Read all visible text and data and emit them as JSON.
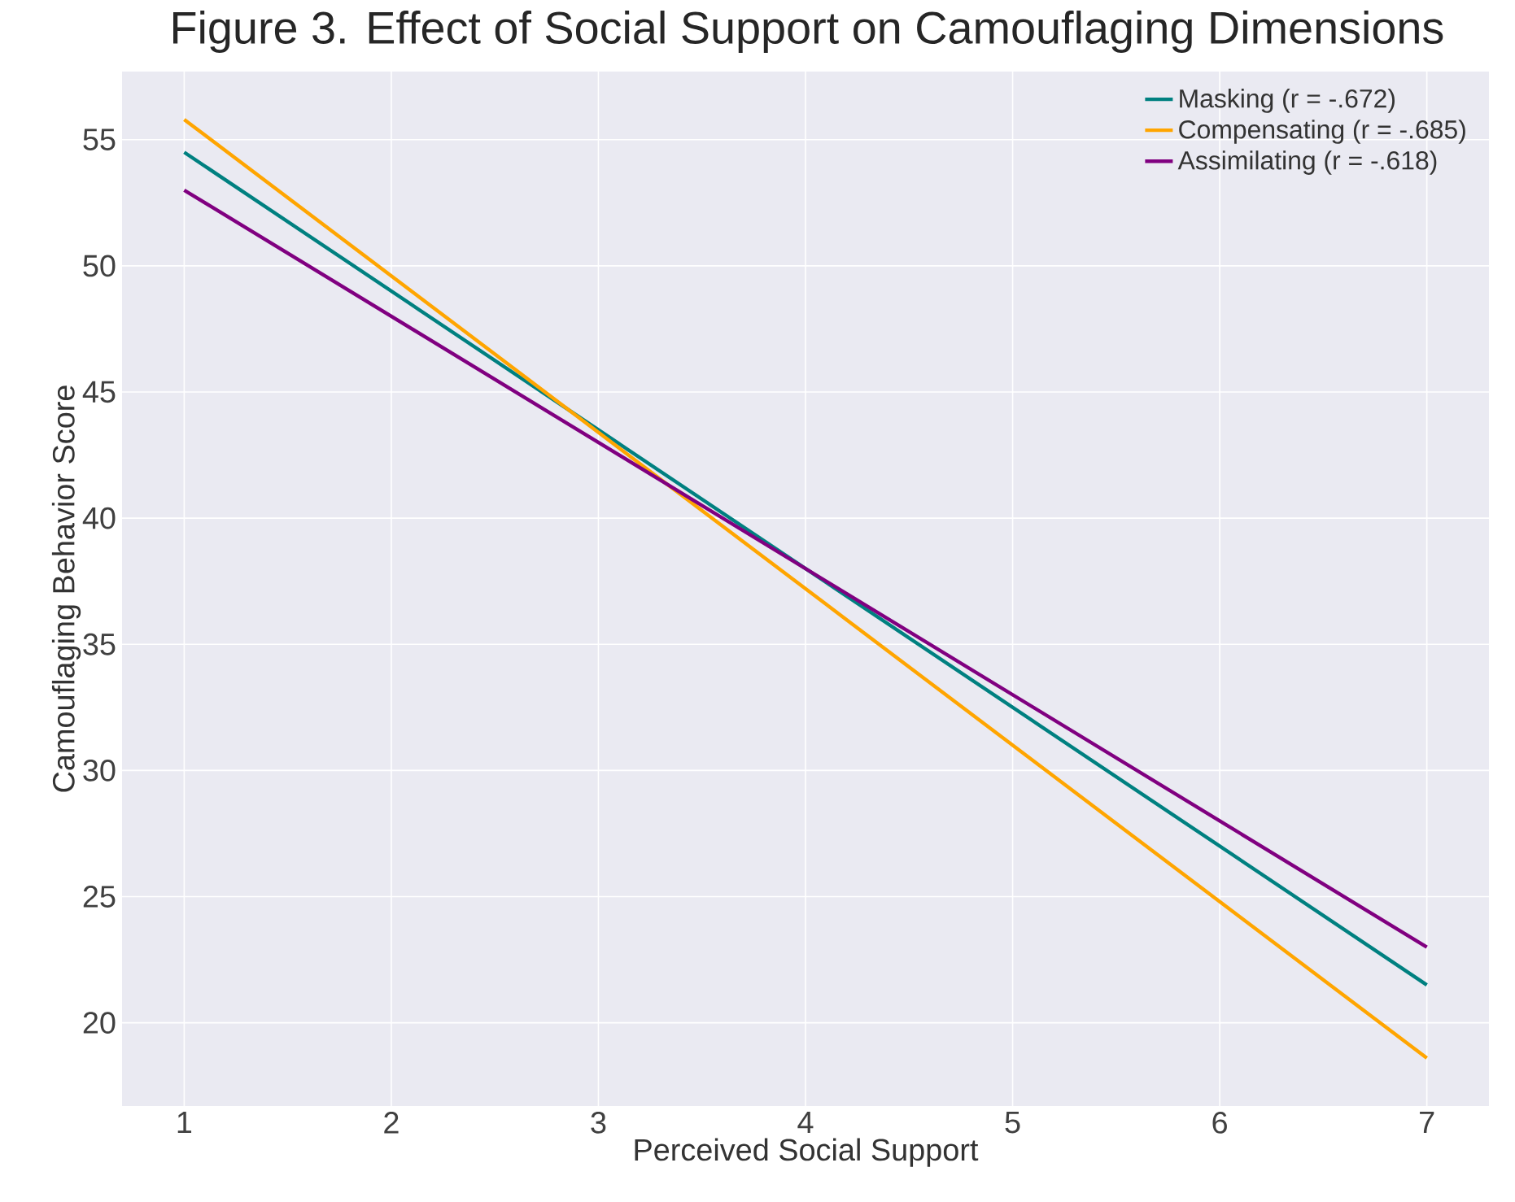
{
  "chart_data": {
    "type": "line",
    "title": "Figure 3. Effect of Social Support on Camouflaging Dimensions",
    "xlabel": "Perceived Social Support",
    "ylabel": "Camouflaging Behavior Score",
    "x": [
      1,
      7
    ],
    "series": [
      {
        "name": "Masking (r = -.672)",
        "color": "#008080",
        "values": [
          54.5,
          21.5
        ]
      },
      {
        "name": "Compensating (r = -.685)",
        "color": "#ffa500",
        "values": [
          55.8,
          18.6
        ]
      },
      {
        "name": "Assimilating (r = -.618)",
        "color": "#800080",
        "values": [
          53.0,
          23.0
        ]
      }
    ],
    "xlim": [
      0.7,
      7.3
    ],
    "ylim": [
      16.7,
      57.7
    ],
    "xticks": [
      1,
      2,
      3,
      4,
      5,
      6,
      7
    ],
    "yticks": [
      20,
      25,
      30,
      35,
      40,
      45,
      50,
      55
    ],
    "grid": true,
    "legend": "top right",
    "line_style": "solid",
    "marker": "none"
  }
}
